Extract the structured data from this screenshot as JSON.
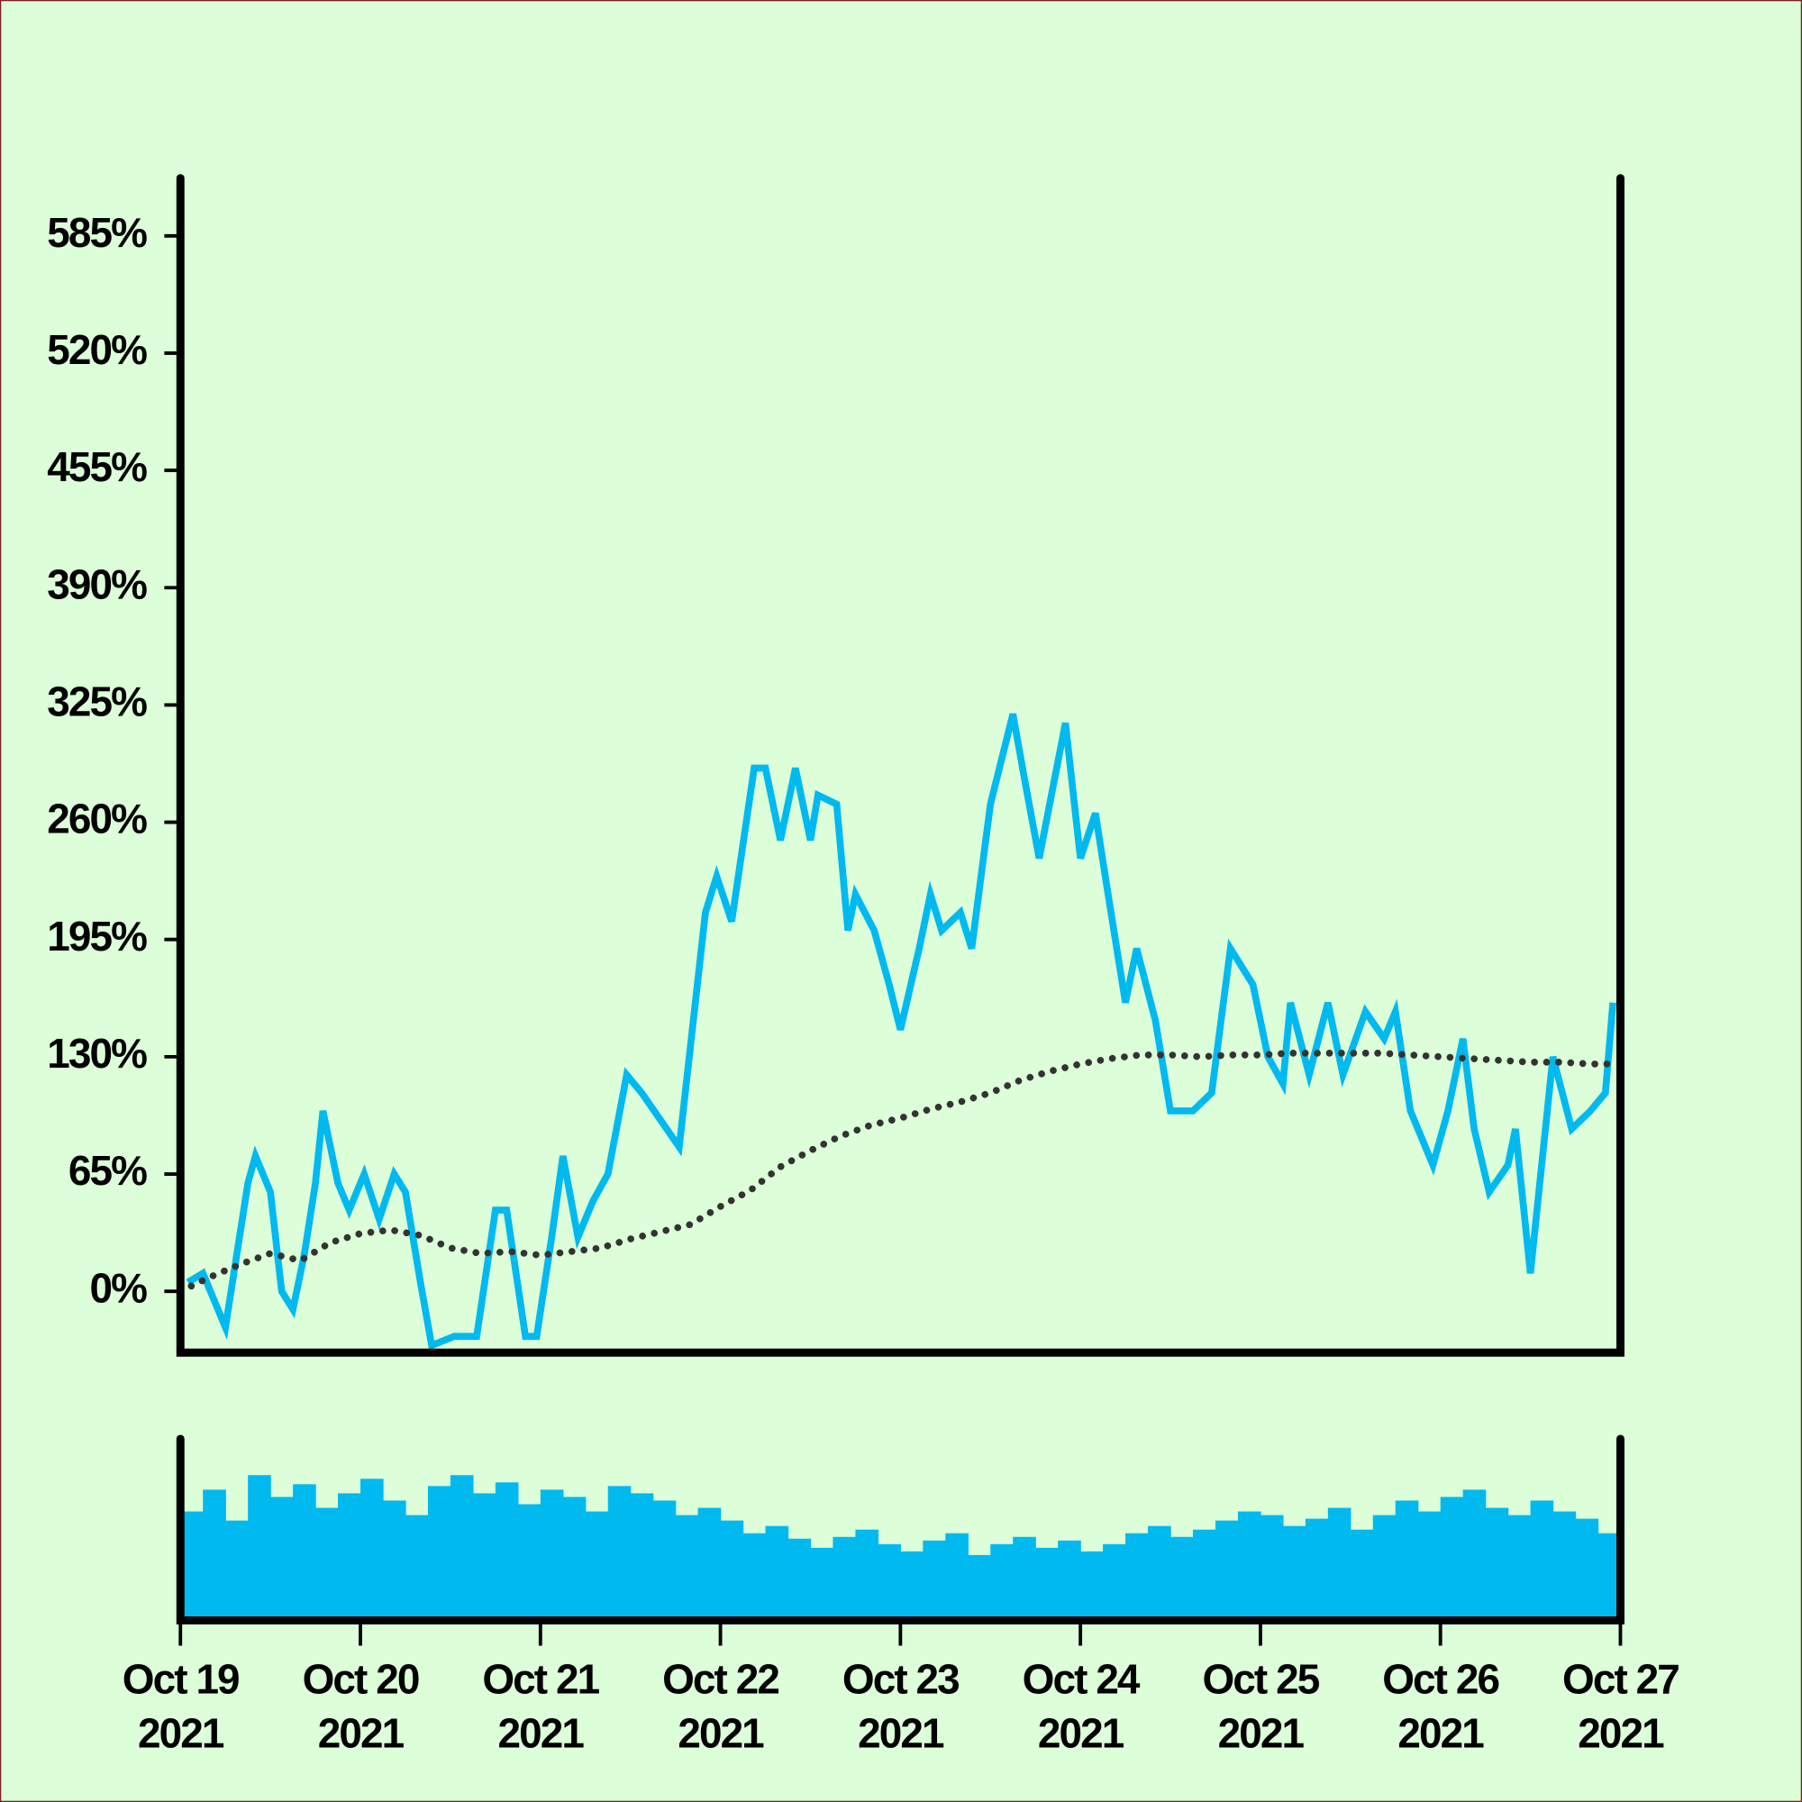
{
  "chart_data": [
    {
      "type": "line",
      "xlim": [
        0,
        192
      ],
      "ylim": [
        -34,
        617
      ],
      "yticks": [
        {
          "value": 0,
          "label": "0%"
        },
        {
          "value": 65,
          "label": "65%"
        },
        {
          "value": 130,
          "label": "130%"
        },
        {
          "value": 195,
          "label": "195%"
        },
        {
          "value": 260,
          "label": "260%"
        },
        {
          "value": 325,
          "label": "325%"
        },
        {
          "value": 390,
          "label": "390%"
        },
        {
          "value": 455,
          "label": "455%"
        },
        {
          "value": 520,
          "label": "520%"
        },
        {
          "value": 585,
          "label": "585%"
        }
      ],
      "series": [
        {
          "color": "#00b9ef",
          "style": "solid",
          "x": [
            1,
            3,
            6,
            9,
            10,
            12,
            13.5,
            15,
            16.5,
            18,
            19,
            21,
            22.5,
            24.5,
            26.5,
            28.5,
            30,
            32,
            33.5,
            36.5,
            39.5,
            42,
            43.5,
            46,
            47.5,
            49.5,
            51,
            53,
            55,
            57,
            59.5,
            61.5,
            64,
            66.5,
            70,
            71.5,
            73.5,
            76.5,
            78,
            80,
            82,
            84,
            85,
            87.5,
            89,
            90,
            92.5,
            94.5,
            96,
            98.5,
            100,
            101.5,
            104,
            105.5,
            108,
            111,
            112.5,
            114.5,
            118,
            120,
            122,
            123.5,
            126,
            127.5,
            130,
            132,
            135,
            137.5,
            140,
            143,
            145,
            147,
            148,
            150.5,
            153,
            155,
            158,
            160.5,
            162,
            164,
            167,
            169,
            171,
            172.5,
            174.5,
            177,
            178,
            180,
            183,
            185.5,
            188,
            190,
            191
          ],
          "values": [
            5,
            10,
            -20,
            60,
            75,
            55,
            0,
            -10,
            20,
            60,
            100,
            60,
            45,
            65,
            40,
            65,
            55,
            5,
            -30,
            -25,
            -25,
            45,
            45,
            -25,
            -25,
            30,
            75,
            30,
            50,
            65,
            120,
            110,
            95,
            80,
            210,
            230,
            205,
            290,
            290,
            250,
            290,
            250,
            275,
            270,
            200,
            220,
            200,
            170,
            145,
            190,
            220,
            200,
            210,
            190,
            270,
            320,
            285,
            240,
            315,
            240,
            265,
            225,
            160,
            190,
            150,
            100,
            100,
            110,
            190,
            170,
            130,
            115,
            160,
            120,
            160,
            120,
            155,
            140,
            155,
            100,
            70,
            100,
            140,
            90,
            55,
            70,
            90,
            10,
            130,
            90,
            100,
            110,
            160
          ]
        },
        {
          "color": "#333333",
          "style": "dotted",
          "x": [
            0,
            4,
            8,
            12,
            16,
            20,
            24,
            28,
            32,
            36,
            40,
            44,
            48,
            52,
            56,
            60,
            64,
            68,
            72,
            76,
            80,
            84,
            88,
            92,
            96,
            100,
            104,
            108,
            112,
            116,
            120,
            124,
            128,
            132,
            136,
            140,
            144,
            148,
            152,
            156,
            160,
            164,
            168,
            172,
            176,
            180,
            184,
            188,
            191
          ],
          "values": [
            0,
            8,
            15,
            21,
            17,
            27,
            32,
            34,
            31,
            24,
            21,
            22,
            20,
            22,
            24,
            29,
            33,
            37,
            47,
            56,
            69,
            78,
            86,
            92,
            96,
            101,
            105,
            110,
            117,
            122,
            126,
            129,
            131,
            131,
            130,
            131,
            131,
            132,
            132,
            132,
            132,
            131,
            130,
            129,
            128,
            127,
            127,
            126,
            126
          ]
        }
      ]
    },
    {
      "type": "bar",
      "color": "#00b9ef",
      "xlim": [
        0,
        192
      ],
      "ylim": [
        0,
        100
      ],
      "xticks": [
        {
          "value": 0,
          "label": [
            "Oct 19",
            "2021"
          ]
        },
        {
          "value": 24,
          "label": [
            "Oct 20",
            "2021"
          ]
        },
        {
          "value": 48,
          "label": [
            "Oct 21",
            "2021"
          ]
        },
        {
          "value": 72,
          "label": [
            "Oct 22",
            "2021"
          ]
        },
        {
          "value": 96,
          "label": [
            "Oct 23",
            "2021"
          ]
        },
        {
          "value": 120,
          "label": [
            "Oct 24",
            "2021"
          ]
        },
        {
          "value": 144,
          "label": [
            "Oct 25",
            "2021"
          ]
        },
        {
          "value": 168,
          "label": [
            "Oct 26",
            "2021"
          ]
        },
        {
          "value": 192,
          "label": [
            "Oct 27",
            "2021"
          ]
        }
      ],
      "x": [
        1.5,
        4.5,
        7.5,
        10.5,
        13.5,
        16.5,
        19.5,
        22.5,
        25.5,
        28.5,
        31.5,
        34.5,
        37.5,
        40.5,
        43.5,
        46.5,
        49.5,
        52.5,
        55.5,
        58.5,
        61.5,
        64.5,
        67.5,
        70.5,
        73.5,
        76.5,
        79.5,
        82.5,
        85.5,
        88.5,
        91.5,
        94.5,
        97.5,
        100.5,
        103.5,
        106.5,
        109.5,
        112.5,
        115.5,
        118.5,
        121.5,
        124.5,
        127.5,
        130.5,
        133.5,
        136.5,
        139.5,
        142.5,
        145.5,
        148.5,
        151.5,
        154.5,
        157.5,
        160.5,
        163.5,
        166.5,
        169.5,
        172.5,
        175.5,
        178.5,
        181.5,
        184.5,
        187.5,
        190.5
      ],
      "values": [
        60,
        72,
        55,
        80,
        68,
        75,
        62,
        70,
        78,
        66,
        58,
        74,
        80,
        70,
        76,
        64,
        72,
        68,
        60,
        74,
        70,
        66,
        58,
        62,
        55,
        48,
        52,
        45,
        40,
        46,
        50,
        42,
        38,
        44,
        48,
        36,
        42,
        46,
        40,
        44,
        38,
        42,
        48,
        52,
        46,
        50,
        55,
        60,
        58,
        52,
        56,
        62,
        50,
        58,
        66,
        60,
        68,
        72,
        62,
        58,
        66,
        60,
        56,
        48
      ]
    }
  ]
}
